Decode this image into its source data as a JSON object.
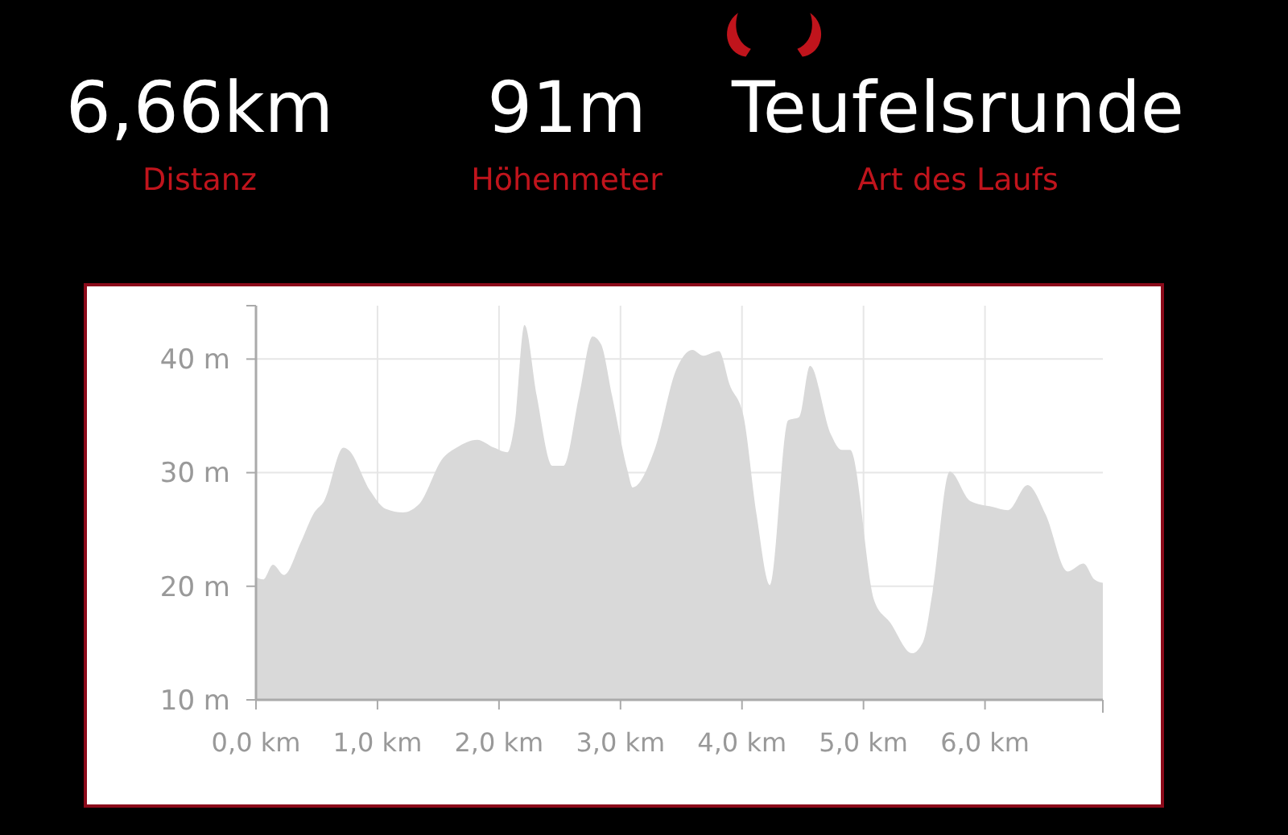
{
  "chart_data": {
    "type": "area",
    "annotations": [
      "6,66km",
      "Distanz",
      "91m",
      "Höhenmeter",
      "Teufelsrunde",
      "Art des Laufs"
    ],
    "x": [
      0,
      0.06,
      0.14,
      0.23,
      0.37,
      0.48,
      0.56,
      0.72,
      0.76,
      0.94,
      1.07,
      1.21,
      1.34,
      1.54,
      1.65,
      1.82,
      1.96,
      2.07,
      2.13,
      2.21,
      2.31,
      2.44,
      2.53,
      2.66,
      2.77,
      2.84,
      2.93,
      3.06,
      3.1,
      3.28,
      3.46,
      3.59,
      3.68,
      3.81,
      3.9,
      4.01,
      4.12,
      4.23,
      4.38,
      4.47,
      4.56,
      4.73,
      4.82,
      4.89,
      5.09,
      5.22,
      5.4,
      5.49,
      5.57,
      5.71,
      5.88,
      6.06,
      6.19,
      6.35,
      6.5,
      6.68,
      6.81,
      6.9,
      6.97
    ],
    "series": [
      {
        "color": "#d9d9d9",
        "values": [
          20.8,
          20.6,
          21.9,
          21,
          23.9,
          26.5,
          27.5,
          32.2,
          32,
          28.4,
          26.8,
          26.5,
          27.2,
          31.3,
          32.2,
          32.9,
          32.2,
          31.8,
          34.4,
          43,
          36.8,
          30.6,
          30.6,
          36.8,
          42,
          41.3,
          36.8,
          30.1,
          28.7,
          32,
          39.1,
          40.8,
          40.3,
          40.7,
          37.7,
          35.1,
          26.3,
          20.1,
          34.6,
          34.9,
          39.4,
          33.4,
          32,
          32,
          18.7,
          16.8,
          14.1,
          15.1,
          19.6,
          30.1,
          27.5,
          27,
          26.7,
          28.9,
          26.3,
          21.3,
          22,
          20.6,
          20.3
        ]
      }
    ],
    "xlim": [
      0,
      6.97
    ],
    "xticks": [
      {
        "value": 0,
        "label": "0,0 km"
      },
      {
        "value": 1,
        "label": "1,0 km"
      },
      {
        "value": 2,
        "label": "2,0 km"
      },
      {
        "value": 3,
        "label": "3,0 km"
      },
      {
        "value": 4,
        "label": "4,0 km"
      },
      {
        "value": 5,
        "label": "5,0 km"
      },
      {
        "value": 6,
        "label": "6,0 km"
      }
    ],
    "ylim": [
      10,
      44.7
    ],
    "yticks": [
      {
        "value": 10,
        "label": "10 m"
      },
      {
        "value": 20,
        "label": "20 m"
      },
      {
        "value": 30,
        "label": "30 m"
      },
      {
        "value": 40,
        "label": "40 m"
      }
    ],
    "grid": true
  }
}
